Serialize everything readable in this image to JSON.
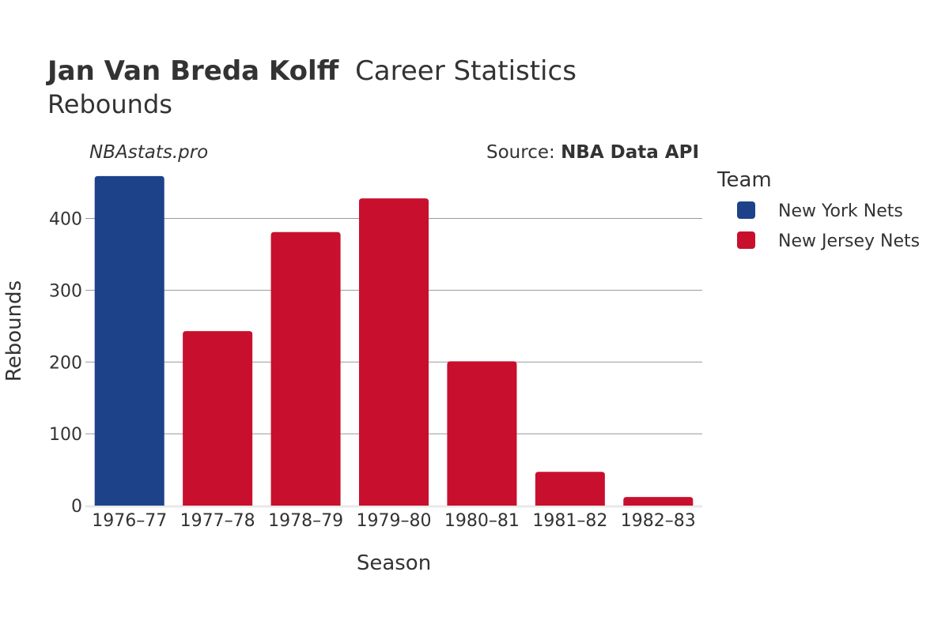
{
  "title": {
    "player": "Jan Van Breda Kolff",
    "suffix": "Career Statistics",
    "subtitle": "Rebounds"
  },
  "watermark": "NBAstats.pro",
  "source": {
    "prefix": "Source: ",
    "name": "NBA Data API"
  },
  "legend": {
    "title": "Team",
    "items": [
      {
        "label": "New York Nets",
        "color": "#1d428a"
      },
      {
        "label": "New Jersey Nets",
        "color": "#c8102e"
      }
    ]
  },
  "chart_data": {
    "type": "bar",
    "title": "Jan Van Breda Kolff Career Statistics",
    "subtitle": "Rebounds",
    "xlabel": "Season",
    "ylabel": "Rebounds",
    "ylim": [
      0,
      460
    ],
    "yticks": [
      0,
      100,
      200,
      300,
      400
    ],
    "grid": true,
    "legend_position": "right",
    "categories": [
      "1976–77",
      "1977–78",
      "1978–79",
      "1979–80",
      "1980–81",
      "1981–82",
      "1982–83"
    ],
    "values": [
      459,
      243,
      381,
      428,
      201,
      47,
      12
    ],
    "teams": [
      "New York Nets",
      "New Jersey Nets",
      "New Jersey Nets",
      "New Jersey Nets",
      "New Jersey Nets",
      "New Jersey Nets",
      "New Jersey Nets"
    ]
  }
}
